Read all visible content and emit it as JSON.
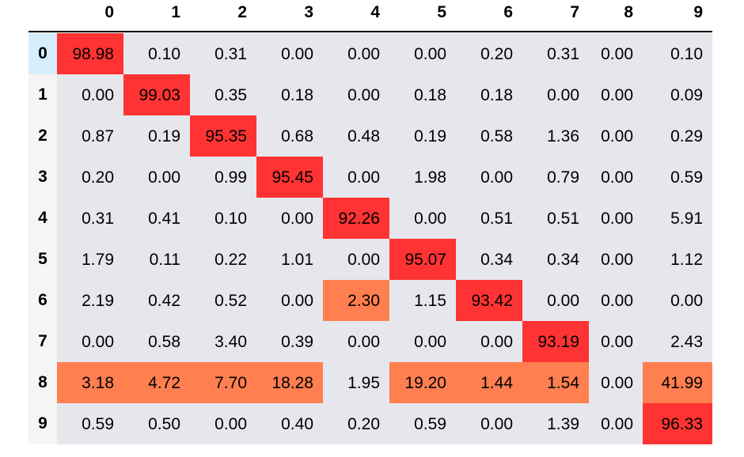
{
  "chart_data": {
    "type": "table",
    "columns": [
      "0",
      "1",
      "2",
      "3",
      "4",
      "5",
      "6",
      "7",
      "8",
      "9"
    ],
    "rows": [
      "0",
      "1",
      "2",
      "3",
      "4",
      "5",
      "6",
      "7",
      "8",
      "9"
    ],
    "values": [
      [
        "98.98",
        "0.10",
        "0.31",
        "0.00",
        "0.00",
        "0.00",
        "0.20",
        "0.31",
        "0.00",
        "0.10"
      ],
      [
        "0.00",
        "99.03",
        "0.35",
        "0.18",
        "0.00",
        "0.18",
        "0.18",
        "0.00",
        "0.00",
        "0.09"
      ],
      [
        "0.87",
        "0.19",
        "95.35",
        "0.68",
        "0.48",
        "0.19",
        "0.58",
        "1.36",
        "0.00",
        "0.29"
      ],
      [
        "0.20",
        "0.00",
        "0.99",
        "95.45",
        "0.00",
        "1.98",
        "0.00",
        "0.79",
        "0.00",
        "0.59"
      ],
      [
        "0.31",
        "0.41",
        "0.10",
        "0.00",
        "92.26",
        "0.00",
        "0.51",
        "0.51",
        "0.00",
        "5.91"
      ],
      [
        "1.79",
        "0.11",
        "0.22",
        "1.01",
        "0.00",
        "95.07",
        "0.34",
        "0.34",
        "0.00",
        "1.12"
      ],
      [
        "2.19",
        "0.42",
        "0.52",
        "0.00",
        "2.30",
        "1.15",
        "93.42",
        "0.00",
        "0.00",
        "0.00"
      ],
      [
        "0.00",
        "0.58",
        "3.40",
        "0.39",
        "0.00",
        "0.00",
        "0.00",
        "93.19",
        "0.00",
        "2.43"
      ],
      [
        "3.18",
        "4.72",
        "7.70",
        "18.28",
        "1.95",
        "19.20",
        "1.44",
        "1.54",
        "0.00",
        "41.99"
      ],
      [
        "0.59",
        "0.50",
        "0.00",
        "0.40",
        "0.20",
        "0.59",
        "0.00",
        "1.39",
        "0.00",
        "96.33"
      ]
    ],
    "highlight": {
      "column_max": "#ff3333",
      "column_second": "#ff7f50"
    },
    "colors": {
      "default_cell": "#e5e7ec",
      "row_header": "#f5f5f5",
      "row_header_selected": "#d6eefc"
    },
    "selected_row": "0"
  }
}
